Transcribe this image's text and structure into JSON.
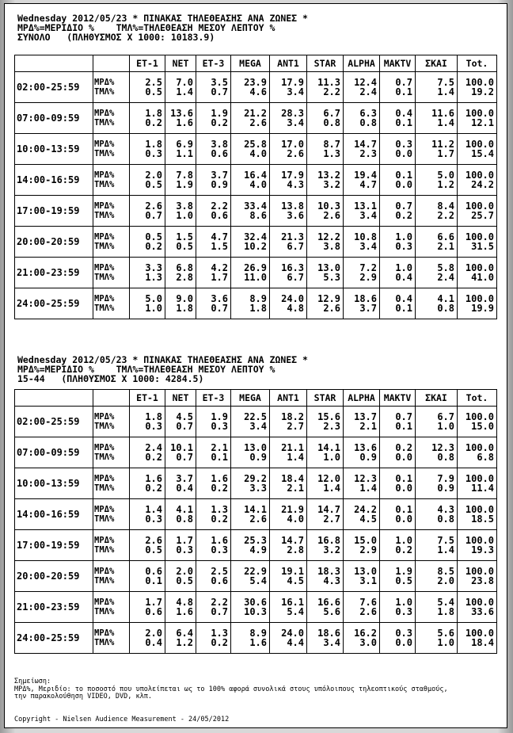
{
  "tables": [
    {
      "header": [
        "Wednesday 2012/05/23 * ΠΙΝΑΚΑΣ ΤΗΛΕΘΕΑΣΗΣ ΑΝΑ ΖΩΝΕΣ *",
        "ΜΡΔ%=ΜΕΡΙΔΙΟ %    ΤΜΛ%=ΤΗΛΕΘΕΑΣΗ ΜΕΣΟΥ ΛΕΠΤΟΥ %",
        "ΣΥΝΟΛΟ   (ΠΛΗΘΥΣΜΟΣ Χ 1000: 10183.9)"
      ],
      "columns": [
        "ET-1",
        "NET",
        "ET-3",
        "MEGA",
        "ANT1",
        "STAR",
        "ALPHA",
        "MAKTV",
        "ΣΚΑΙ",
        "Tot."
      ],
      "metrics": [
        "ΜΡΔ%",
        "ΤΜΛ%"
      ],
      "rows": [
        {
          "time": "02:00-25:59",
          "share": [
            "2.5",
            "7.0",
            "3.5",
            "23.9",
            "17.9",
            "11.3",
            "12.4",
            "0.7",
            "7.5",
            "100.0"
          ],
          "rating": [
            "0.5",
            "1.4",
            "0.7",
            "4.6",
            "3.4",
            "2.2",
            "2.4",
            "0.1",
            "1.4",
            "19.2"
          ]
        },
        {
          "time": "07:00-09:59",
          "share": [
            "1.8",
            "13.6",
            "1.9",
            "21.2",
            "28.3",
            "6.7",
            "6.3",
            "0.4",
            "11.6",
            "100.0"
          ],
          "rating": [
            "0.2",
            "1.6",
            "0.2",
            "2.6",
            "3.4",
            "0.8",
            "0.8",
            "0.1",
            "1.4",
            "12.1"
          ]
        },
        {
          "time": "10:00-13:59",
          "share": [
            "1.8",
            "6.9",
            "3.8",
            "25.8",
            "17.0",
            "8.7",
            "14.7",
            "0.3",
            "11.2",
            "100.0"
          ],
          "rating": [
            "0.3",
            "1.1",
            "0.6",
            "4.0",
            "2.6",
            "1.3",
            "2.3",
            "0.0",
            "1.7",
            "15.4"
          ]
        },
        {
          "time": "14:00-16:59",
          "share": [
            "2.0",
            "7.8",
            "3.7",
            "16.4",
            "17.9",
            "13.2",
            "19.4",
            "0.1",
            "5.0",
            "100.0"
          ],
          "rating": [
            "0.5",
            "1.9",
            "0.9",
            "4.0",
            "4.3",
            "3.2",
            "4.7",
            "0.0",
            "1.2",
            "24.2"
          ]
        },
        {
          "time": "17:00-19:59",
          "share": [
            "2.6",
            "3.8",
            "2.2",
            "33.4",
            "13.8",
            "10.3",
            "13.1",
            "0.7",
            "8.4",
            "100.0"
          ],
          "rating": [
            "0.7",
            "1.0",
            "0.6",
            "8.6",
            "3.6",
            "2.6",
            "3.4",
            "0.2",
            "2.2",
            "25.7"
          ]
        },
        {
          "time": "20:00-20:59",
          "share": [
            "0.5",
            "1.5",
            "4.7",
            "32.4",
            "21.3",
            "12.2",
            "10.8",
            "1.0",
            "6.6",
            "100.0"
          ],
          "rating": [
            "0.2",
            "0.5",
            "1.5",
            "10.2",
            "6.7",
            "3.8",
            "3.4",
            "0.3",
            "2.1",
            "31.5"
          ]
        },
        {
          "time": "21:00-23:59",
          "share": [
            "3.3",
            "6.8",
            "4.2",
            "26.9",
            "16.3",
            "13.0",
            "7.2",
            "1.0",
            "5.8",
            "100.0"
          ],
          "rating": [
            "1.3",
            "2.8",
            "1.7",
            "11.0",
            "6.7",
            "5.3",
            "2.9",
            "0.4",
            "2.4",
            "41.0"
          ]
        },
        {
          "time": "24:00-25:59",
          "share": [
            "5.0",
            "9.0",
            "3.6",
            "8.9",
            "24.0",
            "12.9",
            "18.6",
            "0.4",
            "4.1",
            "100.0"
          ],
          "rating": [
            "1.0",
            "1.8",
            "0.7",
            "1.8",
            "4.8",
            "2.6",
            "3.7",
            "0.1",
            "0.8",
            "19.9"
          ]
        }
      ]
    },
    {
      "header": [
        "Wednesday 2012/05/23 * ΠΙΝΑΚΑΣ ΤΗΛΕΘΕΑΣΗΣ ΑΝΑ ΖΩΝΕΣ *",
        "ΜΡΔ%=ΜΕΡΙΔΙΟ %    ΤΜΛ%=ΤΗΛΕΘΕΑΣΗ ΜΕΣΟΥ ΛΕΠΤΟΥ %",
        "15-44   (ΠΛΗΘΥΣΜΟΣ Χ 1000: 4284.5)"
      ],
      "columns": [
        "ET-1",
        "NET",
        "ET-3",
        "MEGA",
        "ANT1",
        "STAR",
        "ALPHA",
        "MAKTV",
        "ΣΚΑΙ",
        "Tot."
      ],
      "metrics": [
        "ΜΡΔ%",
        "ΤΜΛ%"
      ],
      "rows": [
        {
          "time": "02:00-25:59",
          "share": [
            "1.8",
            "4.5",
            "1.9",
            "22.5",
            "18.2",
            "15.6",
            "13.7",
            "0.7",
            "6.7",
            "100.0"
          ],
          "rating": [
            "0.3",
            "0.7",
            "0.3",
            "3.4",
            "2.7",
            "2.3",
            "2.1",
            "0.1",
            "1.0",
            "15.0"
          ]
        },
        {
          "time": "07:00-09:59",
          "share": [
            "2.4",
            "10.1",
            "2.1",
            "13.0",
            "21.1",
            "14.1",
            "13.6",
            "0.2",
            "12.3",
            "100.0"
          ],
          "rating": [
            "0.2",
            "0.7",
            "0.1",
            "0.9",
            "1.4",
            "1.0",
            "0.9",
            "0.0",
            "0.8",
            "6.8"
          ]
        },
        {
          "time": "10:00-13:59",
          "share": [
            "1.6",
            "3.7",
            "1.6",
            "29.2",
            "18.4",
            "12.0",
            "12.3",
            "0.1",
            "7.9",
            "100.0"
          ],
          "rating": [
            "0.2",
            "0.4",
            "0.2",
            "3.3",
            "2.1",
            "1.4",
            "1.4",
            "0.0",
            "0.9",
            "11.4"
          ]
        },
        {
          "time": "14:00-16:59",
          "share": [
            "1.4",
            "4.1",
            "1.3",
            "14.1",
            "21.9",
            "14.7",
            "24.2",
            "0.1",
            "4.3",
            "100.0"
          ],
          "rating": [
            "0.3",
            "0.8",
            "0.2",
            "2.6",
            "4.0",
            "2.7",
            "4.5",
            "0.0",
            "0.8",
            "18.5"
          ]
        },
        {
          "time": "17:00-19:59",
          "share": [
            "2.6",
            "1.7",
            "1.6",
            "25.3",
            "14.7",
            "16.8",
            "15.0",
            "1.0",
            "7.5",
            "100.0"
          ],
          "rating": [
            "0.5",
            "0.3",
            "0.3",
            "4.9",
            "2.8",
            "3.2",
            "2.9",
            "0.2",
            "1.4",
            "19.3"
          ]
        },
        {
          "time": "20:00-20:59",
          "share": [
            "0.6",
            "2.0",
            "2.5",
            "22.9",
            "19.1",
            "18.3",
            "13.0",
            "1.9",
            "8.5",
            "100.0"
          ],
          "rating": [
            "0.1",
            "0.5",
            "0.6",
            "5.4",
            "4.5",
            "4.3",
            "3.1",
            "0.5",
            "2.0",
            "23.8"
          ]
        },
        {
          "time": "21:00-23:59",
          "share": [
            "1.7",
            "4.8",
            "2.2",
            "30.6",
            "16.1",
            "16.6",
            "7.6",
            "1.0",
            "5.4",
            "100.0"
          ],
          "rating": [
            "0.6",
            "1.6",
            "0.7",
            "10.3",
            "5.4",
            "5.6",
            "2.6",
            "0.3",
            "1.8",
            "33.6"
          ]
        },
        {
          "time": "24:00-25:59",
          "share": [
            "2.0",
            "6.4",
            "1.3",
            "8.9",
            "24.0",
            "18.6",
            "16.2",
            "0.3",
            "5.6",
            "100.0"
          ],
          "rating": [
            "0.4",
            "1.2",
            "0.2",
            "1.6",
            "4.4",
            "3.4",
            "3.0",
            "0.0",
            "1.0",
            "18.4"
          ]
        }
      ]
    }
  ],
  "note": [
    "Σημείωση:",
    "ΜΡΔ%, Μεριδίο: το ποσοστό που υπολείπεται ως το 100% αφορά συνολικά στους υπόλοιπους τηλεοπτικούς σταθμούς,",
    "την παρακολούθηση VIDEO, DVD, κλπ."
  ],
  "copyright": "Copyright - Nielsen Audience Measurement - 24/05/2012"
}
